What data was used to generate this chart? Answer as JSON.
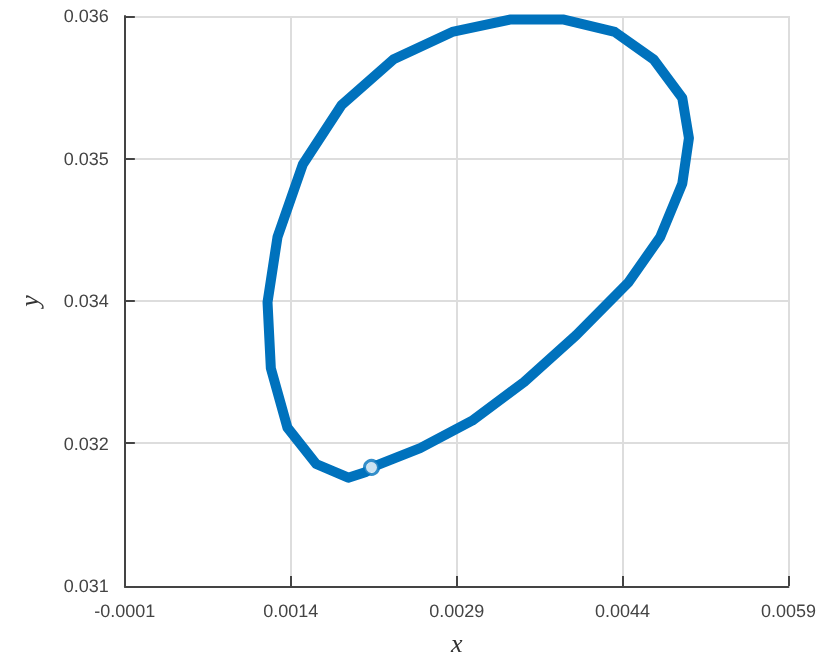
{
  "chart_data": {
    "type": "line",
    "xlabel": "x",
    "ylabel": "y",
    "xlim": [
      -0.0001,
      0.0059
    ],
    "xticks": [
      -0.0001,
      0.0014,
      0.0029,
      0.0044,
      0.0059
    ],
    "ylim": [
      0.031,
      0.036
    ],
    "yticks": [
      0.031,
      {
        "value": 0.03225,
        "label": "0.032"
      },
      {
        "value": 0.0335,
        "label": "0.034"
      },
      {
        "value": 0.03475,
        "label": "0.035"
      },
      0.036
    ],
    "grid": true,
    "marker": "none",
    "line_style": "solid",
    "series": [
      {
        "color": "#0072bd",
        "x": [
          0.00213,
          0.00257,
          0.00304,
          0.00351,
          0.00398,
          0.00445,
          0.00474,
          0.00494,
          0.005,
          0.00494,
          0.00468,
          0.00433,
          0.00386,
          0.00339,
          0.00286,
          0.00233,
          0.00186,
          0.00151,
          0.00128,
          0.00119,
          0.00122,
          0.00137,
          0.00163,
          0.00192,
          0.00208
        ],
        "values": [
          0.03204,
          0.03221,
          0.03245,
          0.03279,
          0.0332,
          0.03366,
          0.03406,
          0.03453,
          0.03493,
          0.03528,
          0.03562,
          0.03586,
          0.03597,
          0.03597,
          0.03586,
          0.03562,
          0.03522,
          0.0347,
          0.03406,
          0.03349,
          0.03291,
          0.03239,
          0.03207,
          0.03195,
          0.032
        ]
      },
      {
        "type": "scatter",
        "color": "#0072bd",
        "marker": "circle",
        "x": [
          0.00213
        ],
        "values": [
          0.03204
        ]
      }
    ]
  }
}
